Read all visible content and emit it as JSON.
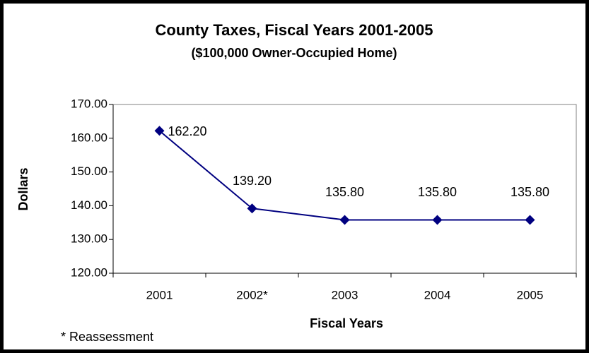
{
  "chart_data": {
    "type": "line",
    "title": "County Taxes, Fiscal Years 2001-2005",
    "subtitle": "($100,000 Owner-Occupied Home)",
    "x_label": "Fiscal Years",
    "y_label": "Dollars",
    "annotation": "* Reassessment",
    "categories": [
      "2001",
      "2002*",
      "2003",
      "2004",
      "2005"
    ],
    "series": [
      {
        "name": "County Taxes",
        "color": "#000080",
        "values": [
          162.2,
          139.2,
          135.8,
          135.8,
          135.8
        ],
        "value_labels": [
          "162.20",
          "139.20",
          "135.80",
          "135.80",
          "135.80"
        ]
      }
    ],
    "ylim": [
      120,
      170
    ],
    "yticks": [
      {
        "value": 120,
        "label": "120.00"
      },
      {
        "value": 130,
        "label": "130.00"
      },
      {
        "value": 140,
        "label": "140.00"
      },
      {
        "value": 150,
        "label": "150.00"
      },
      {
        "value": 160,
        "label": "160.00"
      },
      {
        "value": 170,
        "label": "170.00"
      }
    ],
    "grid": false
  }
}
